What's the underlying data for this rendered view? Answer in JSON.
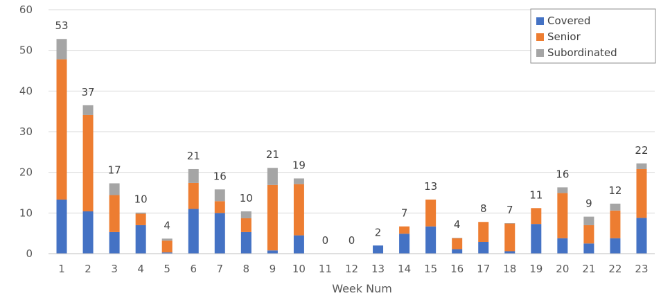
{
  "chart_data": {
    "type": "bar",
    "stacked": true,
    "title": "",
    "xlabel": "Week Num",
    "ylabel": "",
    "ylim": [
      0,
      60
    ],
    "yticks": [
      0,
      10,
      20,
      30,
      40,
      50,
      60
    ],
    "grid": true,
    "legend_position": "top-right",
    "categories": [
      "1",
      "2",
      "3",
      "4",
      "5",
      "6",
      "7",
      "8",
      "9",
      "10",
      "11",
      "12",
      "13",
      "14",
      "15",
      "16",
      "17",
      "18",
      "19",
      "20",
      "21",
      "22",
      "23"
    ],
    "series": [
      {
        "name": "Covered",
        "color": "#4472C4",
        "values": [
          13.3,
          10.4,
          5.3,
          7,
          0.3,
          11,
          10,
          5.3,
          0.8,
          4.5,
          0,
          0,
          2,
          4.9,
          6.7,
          1.1,
          2.9,
          0.6,
          7.3,
          3.8,
          2.5,
          3.8,
          8.8
        ]
      },
      {
        "name": "Senior",
        "color": "#ED7D31",
        "values": [
          34.5,
          23.7,
          9.1,
          2.8,
          2.9,
          6.4,
          2.9,
          3.4,
          16.1,
          12.6,
          0,
          0,
          0,
          1.8,
          6.6,
          2.7,
          4.9,
          6.8,
          3.9,
          11.1,
          4.5,
          6.8,
          12
        ]
      },
      {
        "name": "Subordinated",
        "color": "#A5A5A5",
        "values": [
          5,
          2.4,
          2.9,
          0.3,
          0.5,
          3.4,
          2.9,
          1.7,
          4.2,
          1.4,
          0,
          0,
          0,
          0,
          0,
          0.1,
          0,
          0.1,
          0,
          1.4,
          2.1,
          1.7,
          1.4
        ]
      }
    ],
    "total_labels": [
      "53",
      "37",
      "17",
      "10",
      "4",
      "21",
      "16",
      "10",
      "21",
      "19",
      "0",
      "0",
      "2",
      "7",
      "13",
      "4",
      "8",
      "7",
      "11",
      "16",
      "9",
      "12",
      "22"
    ]
  }
}
